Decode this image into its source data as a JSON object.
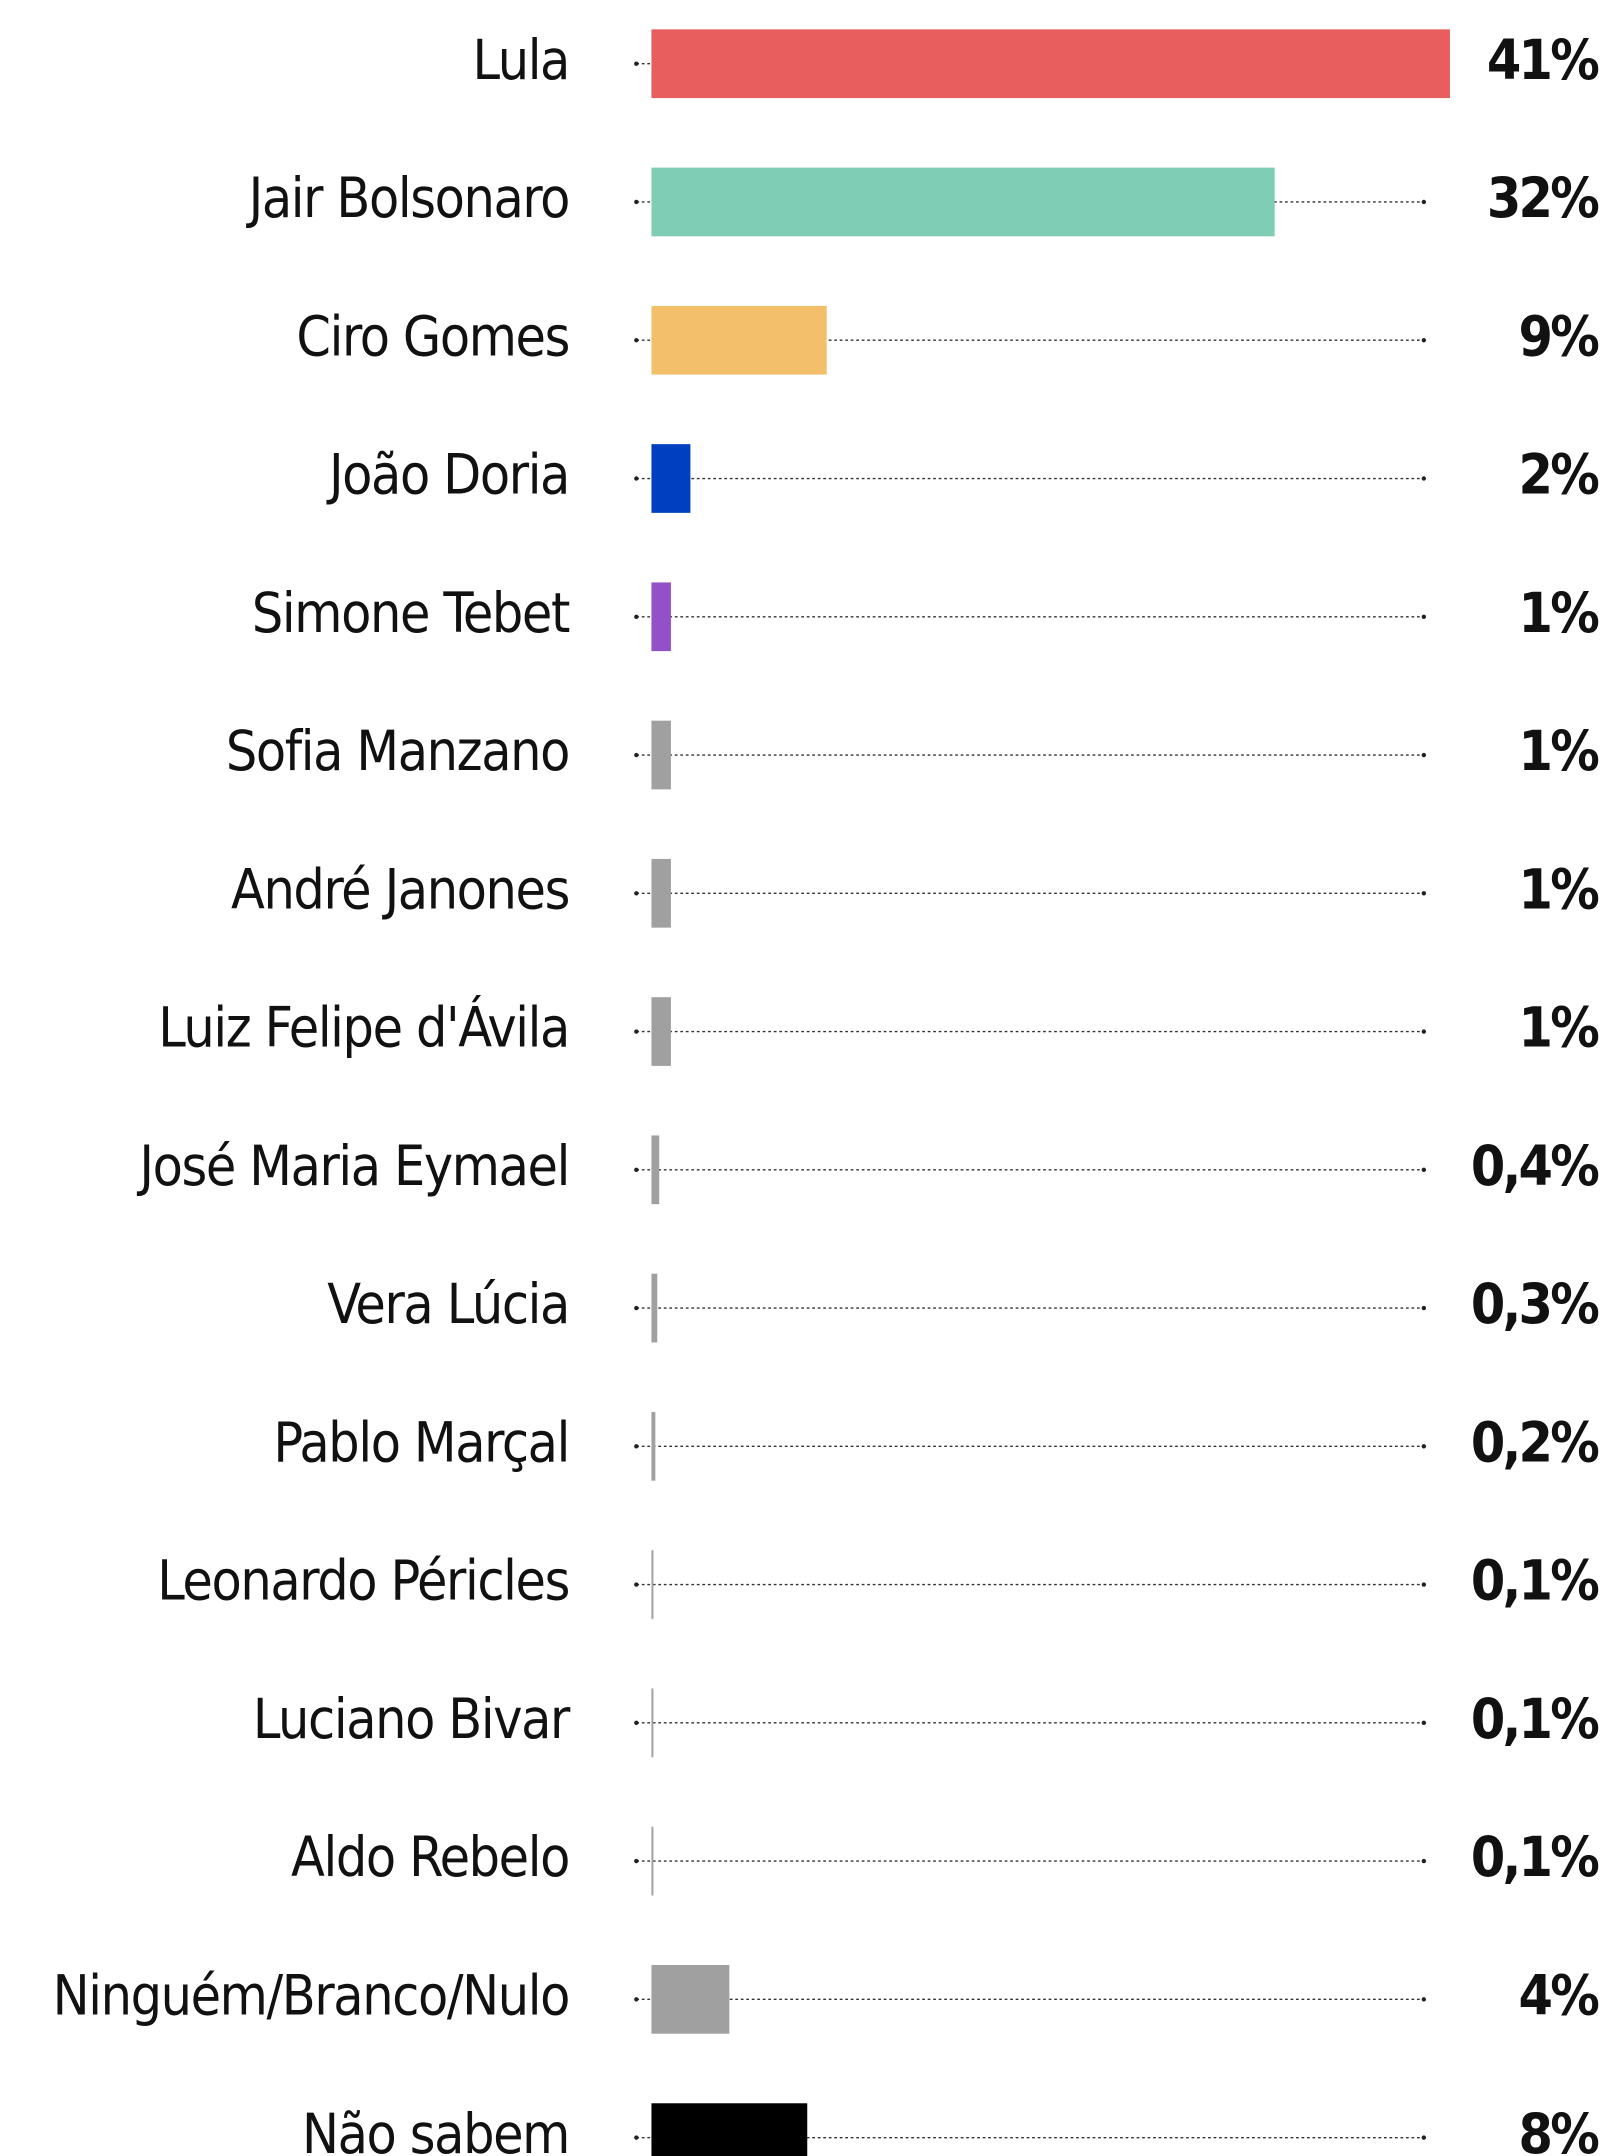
{
  "chart_data": {
    "type": "bar",
    "orientation": "horizontal",
    "categories": [
      "Lula",
      "Jair Bolsonaro",
      "Ciro Gomes",
      "João Doria",
      "Simone Tebet",
      "Sofia Manzano",
      "André Janones",
      "Luiz Felipe d'Ávila",
      "José Maria Eymael",
      "Vera Lúcia",
      "Pablo Marçal",
      "Leonardo Péricles",
      "Luciano Bivar",
      "Aldo Rebelo",
      "Ninguém/Branco/Nulo",
      "Não sabem"
    ],
    "values": [
      41,
      32,
      9,
      2,
      1,
      1,
      1,
      1,
      0.4,
      0.3,
      0.2,
      0.1,
      0.1,
      0.1,
      4,
      8
    ],
    "value_labels": [
      "41%",
      "32%",
      "9%",
      "2%",
      "1%",
      "1%",
      "1%",
      "1%",
      "0,4%",
      "0,3%",
      "0,2%",
      "0,1%",
      "0,1%",
      "0,1%",
      "4%",
      "8%"
    ],
    "colors": [
      "#e85d5d",
      "#7ecdb4",
      "#f4bf6b",
      "#0040c0",
      "#9351c8",
      "#a0a0a0",
      "#a0a0a0",
      "#a0a0a0",
      "#a0a0a0",
      "#a0a0a0",
      "#a0a0a0",
      "#a0a0a0",
      "#a0a0a0",
      "#a0a0a0",
      "#a0a0a0",
      "#000000"
    ]
  }
}
